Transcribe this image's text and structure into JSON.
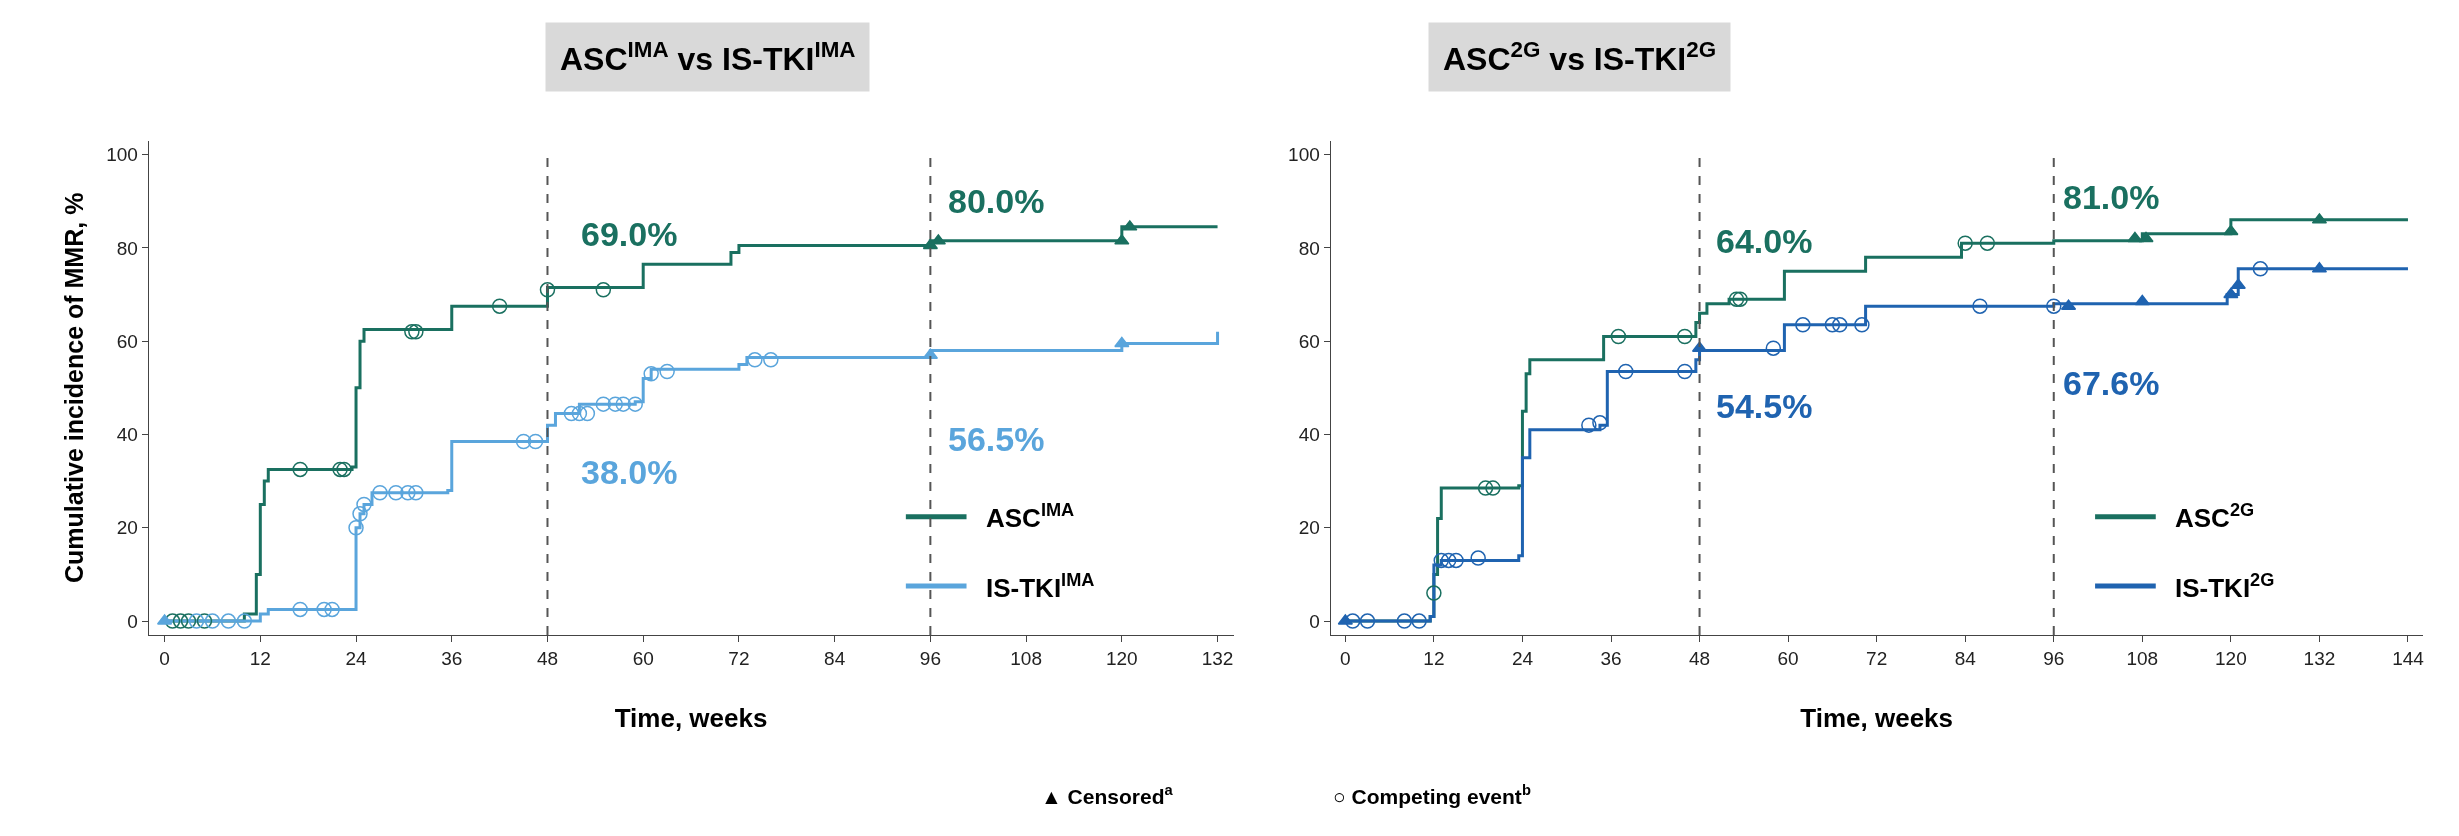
{
  "chart_data": [
    {
      "type": "step",
      "title": "ASC$^{IMA}$ vs IS-TKI$^{IMA}$",
      "xlabel": "Time, weeks",
      "ylabel": "Cumulative incidence of MMR, %",
      "xlim": [
        -2,
        134
      ],
      "xticks": [
        0,
        12,
        24,
        36,
        48,
        60,
        72,
        84,
        96,
        108,
        120,
        132
      ],
      "ylim": [
        -3,
        103
      ],
      "yticks": [
        0,
        20,
        40,
        60,
        80,
        100
      ],
      "legend": "bottom right",
      "series": [
        {
          "name": "ASC$^{IMA}$",
          "color": "#1a7060",
          "x": [
            0,
            10,
            11.5,
            12,
            12.5,
            13,
            23.5,
            24,
            24.5,
            25,
            36,
            48,
            60,
            71,
            72,
            96,
            120,
            132
          ],
          "values": [
            0,
            1.5,
            10,
            25,
            30,
            32.5,
            33,
            50,
            60,
            62.5,
            67.5,
            71.5,
            76.5,
            79,
            80.5,
            81.5,
            84.5,
            84.5
          ]
        },
        {
          "name": "IS-TKI$^{IMA}$",
          "color": "#5aa5dc",
          "x": [
            0,
            12,
            13,
            23.5,
            24,
            24.5,
            25,
            26,
            35.5,
            36,
            47,
            48,
            49,
            52,
            56,
            59,
            60,
            61,
            72,
            73,
            96,
            120,
            132
          ],
          "values": [
            0,
            1.5,
            2.5,
            2.5,
            20,
            23,
            25,
            27.5,
            28,
            38.5,
            38.5,
            42,
            44.5,
            46.5,
            46.5,
            47,
            52,
            54,
            55,
            56.5,
            58,
            59.5,
            62
          ]
        },
        {
          "color": "#1a7060",
          "type": "scatter",
          "marker": "circle",
          "x": [
            1,
            2,
            3,
            5,
            17,
            22,
            22.5,
            31,
            31.5,
            42,
            48,
            55
          ],
          "values": [
            0,
            0,
            0,
            0,
            32.5,
            32.5,
            32.5,
            62,
            62,
            67.5,
            71,
            71
          ]
        },
        {
          "color": "#1a7060",
          "type": "scatter",
          "marker": "triangle",
          "x": [
            96,
            97,
            120,
            121
          ],
          "values": [
            80.5,
            81.5,
            81.5,
            84.5
          ]
        },
        {
          "color": "#5aa5dc",
          "type": "scatter",
          "marker": "circle",
          "x": [
            4,
            6,
            8,
            10,
            17,
            20,
            21,
            24,
            24.5,
            25,
            27,
            29,
            30.5,
            31.5,
            45,
            46.5,
            51,
            52,
            53,
            55,
            56.5,
            57.5,
            59,
            61,
            63,
            74,
            76
          ],
          "values": [
            0,
            0,
            0,
            0,
            2.5,
            2.5,
            2.5,
            20,
            23,
            25,
            27.5,
            27.5,
            27.5,
            27.5,
            38.5,
            38.5,
            44.5,
            44.5,
            44.5,
            46.5,
            46.5,
            46.5,
            46.5,
            53,
            53.5,
            56,
            56
          ]
        },
        {
          "color": "#5aa5dc",
          "type": "scatter",
          "marker": "triangle",
          "x": [
            0,
            96,
            120
          ],
          "values": [
            0,
            57,
            59.5
          ]
        }
      ],
      "ref_lines": [
        {
          "axis": "x",
          "value": 48,
          "color": "#555555",
          "line_style": "dashed"
        },
        {
          "axis": "x",
          "value": 96,
          "color": "#555555",
          "line_style": "dashed"
        }
      ],
      "annotations": [
        "69.0%",
        "38.0%",
        "80.0%",
        "56.5%",
        "▲ Censored$^{a}$",
        "○ Competing event$^{b}$"
      ]
    },
    {
      "type": "step",
      "title": "ASC$^{2G}$ vs IS-TKI$^{2G}$",
      "xlabel": "Time, weeks",
      "xlim": [
        -2,
        146
      ],
      "xticks": [
        0,
        12,
        24,
        36,
        48,
        60,
        72,
        84,
        96,
        108,
        120,
        132,
        144
      ],
      "ylim": [
        -3,
        103
      ],
      "yticks": [
        0,
        20,
        40,
        60,
        80,
        100
      ],
      "legend": "bottom right",
      "series": [
        {
          "name": "ASC$^{2G}$",
          "color": "#1a7060",
          "x": [
            0,
            11.5,
            12,
            12.5,
            13,
            23.5,
            24,
            24.5,
            25,
            35,
            47.5,
            48,
            49,
            52,
            59.5,
            70.5,
            83.5,
            96,
            108,
            120,
            144
          ],
          "values": [
            0,
            1,
            10,
            22,
            28.5,
            29,
            45,
            53,
            56,
            61,
            64,
            66,
            68,
            69,
            75,
            78,
            81,
            81.5,
            83,
            86,
            86
          ]
        },
        {
          "name": "IS-TKI$^{2G}$",
          "color": "#1f63b0",
          "x": [
            0,
            11.5,
            12,
            13,
            23.5,
            24,
            25,
            34.5,
            35.5,
            47.5,
            48,
            59.5,
            70.5,
            96,
            119.5,
            121,
            144
          ],
          "values": [
            0,
            1,
            12,
            13,
            14,
            35,
            41,
            42,
            53.5,
            56,
            58,
            63.5,
            67.5,
            68,
            70,
            75.5,
            75.5
          ]
        },
        {
          "color": "#1a7060",
          "type": "scatter",
          "marker": "circle",
          "x": [
            12,
            19,
            20,
            37,
            46,
            53,
            53.5,
            84,
            87
          ],
          "values": [
            6,
            28.5,
            28.5,
            61,
            61,
            69,
            69,
            81,
            81
          ]
        },
        {
          "color": "#1a7060",
          "type": "scatter",
          "marker": "triangle",
          "x": [
            107,
            108.5,
            120,
            132
          ],
          "values": [
            82,
            82,
            83.5,
            86
          ]
        },
        {
          "color": "#1f63b0",
          "type": "scatter",
          "marker": "circle",
          "x": [
            1,
            3,
            8,
            10,
            13,
            14,
            15,
            18,
            33,
            34.5,
            38,
            46,
            58,
            62,
            66,
            67,
            70,
            86,
            96,
            124
          ],
          "values": [
            0,
            0,
            0,
            0,
            13,
            13,
            13,
            13.5,
            42,
            42.5,
            53.5,
            53.5,
            58.5,
            63.5,
            63.5,
            63.5,
            63.5,
            67.5,
            67.5,
            75.5
          ]
        },
        {
          "color": "#1f63b0",
          "type": "scatter",
          "marker": "triangle",
          "x": [
            0,
            48,
            98,
            108,
            120,
            121,
            132
          ],
          "values": [
            0,
            58.5,
            67.5,
            68.5,
            70,
            72,
            75.5
          ]
        }
      ],
      "ref_lines": [
        {
          "axis": "x",
          "value": 48,
          "color": "#555555",
          "line_style": "dashed"
        },
        {
          "axis": "x",
          "value": 96,
          "color": "#555555",
          "line_style": "dashed"
        }
      ],
      "annotations": [
        "64.0%",
        "54.5%",
        "81.0%",
        "67.6%"
      ]
    }
  ]
}
